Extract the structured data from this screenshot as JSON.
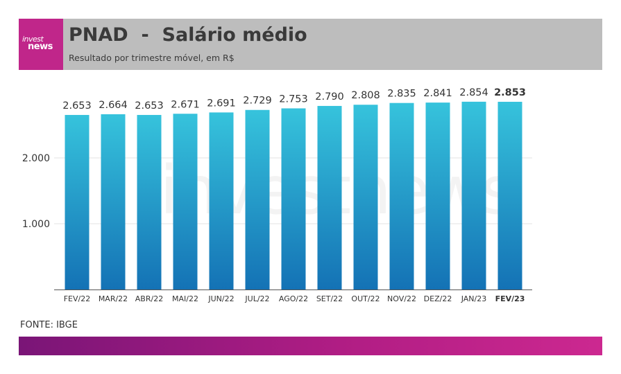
{
  "header": {
    "logo_line1": "invest",
    "logo_line2": "news",
    "title": "PNAD  -  Salário médio",
    "subtitle": "Resultado por trimestre móvel, em R$"
  },
  "watermark": "investnews",
  "source": "FONTE: IBGE",
  "colors": {
    "header_bg": "#bdbdbd",
    "logo_bg": "#c0268a",
    "bar_top": "#36c3dc",
    "bar_bottom": "#1472b5",
    "footer_gradient_start": "#7a1577",
    "footer_gradient_end": "#cc2890"
  },
  "chart_data": {
    "type": "bar",
    "categories": [
      "FEV/22",
      "MAR/22",
      "ABR/22",
      "MAI/22",
      "JUN/22",
      "JUL/22",
      "AGO/22",
      "SET/22",
      "OUT/22",
      "NOV/22",
      "DEZ/22",
      "JAN/23",
      "FEV/23"
    ],
    "values": [
      2653,
      2664,
      2653,
      2671,
      2691,
      2729,
      2753,
      2790,
      2808,
      2835,
      2841,
      2854,
      2853
    ],
    "value_labels": [
      "2.653",
      "2.664",
      "2.653",
      "2.671",
      "2.691",
      "2.729",
      "2.753",
      "2.790",
      "2.808",
      "2.835",
      "2.841",
      "2.854",
      "2.853"
    ],
    "highlight_index": 12,
    "yticks": [
      1000,
      2000
    ],
    "ytick_labels": [
      "1.000",
      "2.000"
    ],
    "ylim": [
      0,
      3000
    ],
    "grid": true,
    "legend": "none"
  }
}
